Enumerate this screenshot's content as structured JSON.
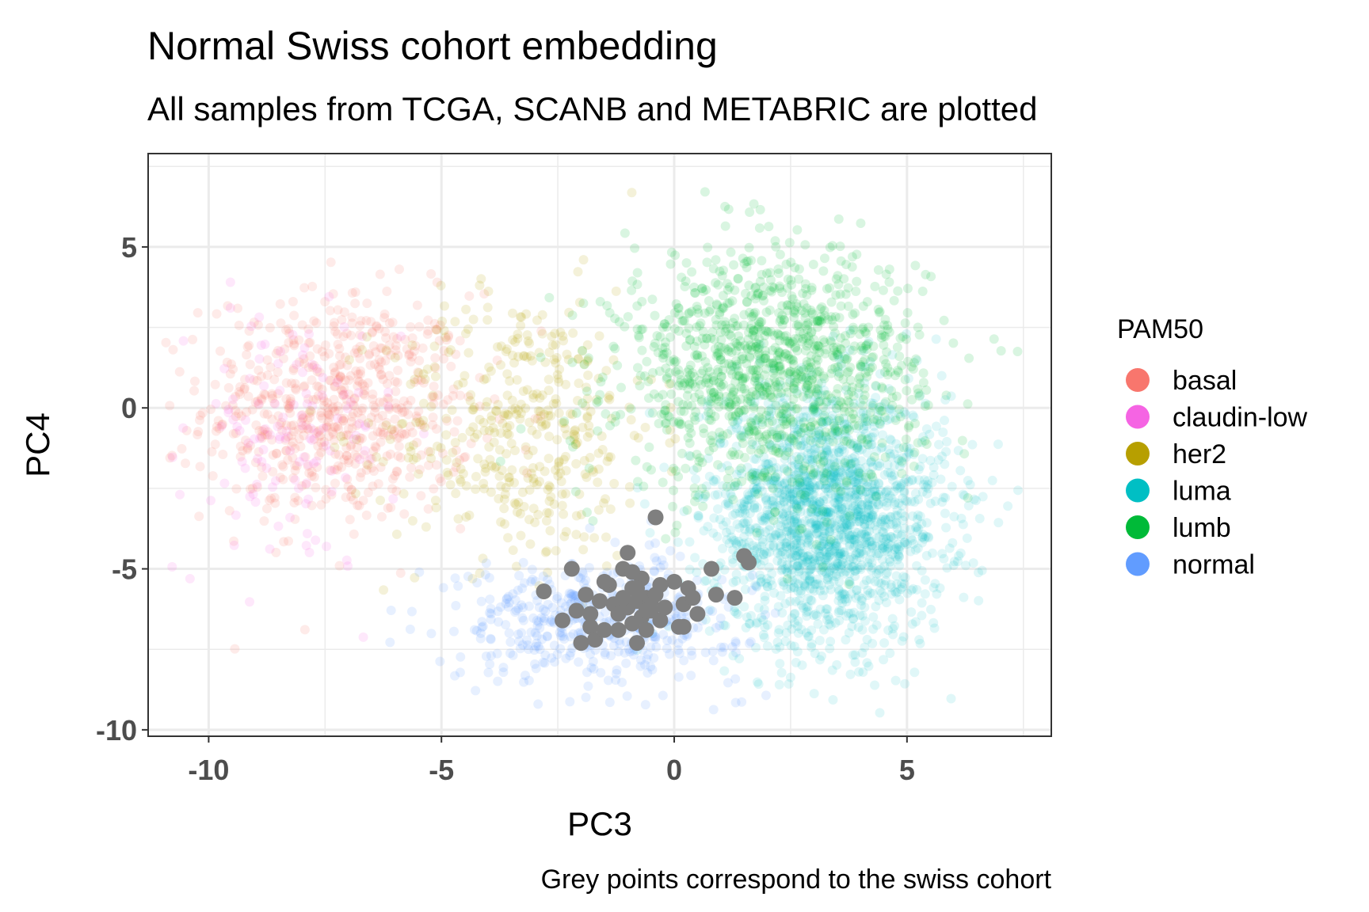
{
  "chart_data": {
    "type": "scatter",
    "title": "Normal Swiss cohort embedding",
    "subtitle": "All samples from TCGA, SCANB and METABRIC are plotted",
    "caption": "Grey points correspond to the swiss cohort",
    "xlabel": "PC3",
    "ylabel": "PC4",
    "xlim": [
      -11.3,
      8.1
    ],
    "ylim": [
      -10.2,
      7.9
    ],
    "xticks": [
      -10,
      -5,
      0,
      5
    ],
    "yticks": [
      -10,
      -5,
      0,
      5
    ],
    "xtick_labels": [
      "-10",
      "-5",
      "0",
      "5"
    ],
    "ytick_labels": [
      "-10",
      "-5",
      "0",
      "5"
    ],
    "grid": true,
    "legend": {
      "title": "PAM50",
      "position": "right"
    },
    "series": [
      {
        "name": "basal",
        "color": "#F8766D",
        "alpha": 0.15,
        "center": [
          -7.2,
          0.0
        ],
        "spread": [
          1.7,
          2.1
        ],
        "count": 650
      },
      {
        "name": "claudin-low",
        "color": "#F564E3",
        "alpha": 0.15,
        "center": [
          -8.3,
          -1.0
        ],
        "spread": [
          1.4,
          2.4
        ],
        "count": 130
      },
      {
        "name": "her2",
        "color": "#B79F00",
        "alpha": 0.15,
        "center": [
          -3.3,
          -0.6
        ],
        "spread": [
          1.7,
          2.5
        ],
        "count": 420
      },
      {
        "name": "luma",
        "color": "#00BFC4",
        "alpha": 0.12,
        "center": [
          3.3,
          -3.4
        ],
        "spread": [
          1.5,
          2.3
        ],
        "count": 1800
      },
      {
        "name": "lumb",
        "color": "#00BA38",
        "alpha": 0.15,
        "center": [
          2.1,
          1.1
        ],
        "spread": [
          1.9,
          2.2
        ],
        "count": 1200
      },
      {
        "name": "normal",
        "color": "#619CFF",
        "alpha": 0.15,
        "center": [
          -1.6,
          -6.6
        ],
        "spread": [
          1.8,
          1.1
        ],
        "count": 480
      }
    ],
    "swiss_cohort": {
      "color": "#7F7F7F",
      "points": [
        [
          -2.8,
          -5.7
        ],
        [
          -2.2,
          -5.0
        ],
        [
          -2.4,
          -6.6
        ],
        [
          -2.1,
          -6.3
        ],
        [
          -2.0,
          -7.3
        ],
        [
          -1.9,
          -5.8
        ],
        [
          -1.8,
          -6.8
        ],
        [
          -1.7,
          -7.2
        ],
        [
          -1.6,
          -6.0
        ],
        [
          -1.5,
          -6.9
        ],
        [
          -1.4,
          -5.5
        ],
        [
          -1.3,
          -6.1
        ],
        [
          -1.2,
          -6.4
        ],
        [
          -1.1,
          -5.0
        ],
        [
          -1.0,
          -4.5
        ],
        [
          -1.0,
          -6.2
        ],
        [
          -0.9,
          -5.6
        ],
        [
          -0.9,
          -6.7
        ],
        [
          -0.8,
          -7.3
        ],
        [
          -0.8,
          -6.0
        ],
        [
          -0.7,
          -5.3
        ],
        [
          -0.7,
          -6.5
        ],
        [
          -0.6,
          -6.9
        ],
        [
          -0.6,
          -5.9
        ],
        [
          -0.5,
          -6.3
        ],
        [
          -0.5,
          -6.0
        ],
        [
          -0.4,
          -3.4
        ],
        [
          -0.4,
          -5.8
        ],
        [
          -0.3,
          -6.6
        ],
        [
          -0.2,
          -6.2
        ],
        [
          0.0,
          -5.4
        ],
        [
          0.1,
          -6.8
        ],
        [
          0.2,
          -6.1
        ],
        [
          0.3,
          -5.6
        ],
        [
          0.4,
          -5.9
        ],
        [
          0.5,
          -6.4
        ],
        [
          0.8,
          -5.0
        ],
        [
          0.9,
          -5.8
        ],
        [
          1.3,
          -5.9
        ],
        [
          1.5,
          -4.6
        ],
        [
          1.6,
          -4.8
        ],
        [
          -1.5,
          -5.4
        ],
        [
          -0.9,
          -5.1
        ],
        [
          -1.2,
          -6.9
        ],
        [
          -0.3,
          -5.5
        ],
        [
          0.2,
          -6.8
        ],
        [
          -1.8,
          -6.4
        ],
        [
          -0.6,
          -6.3
        ],
        [
          -1.1,
          -5.9
        ],
        [
          -0.8,
          -5.6
        ]
      ]
    }
  }
}
